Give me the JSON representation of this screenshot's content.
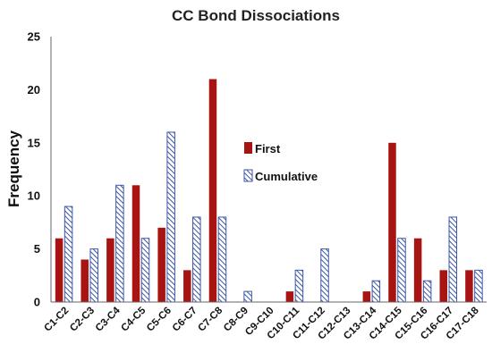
{
  "chart_data": {
    "type": "bar",
    "title": "CC Bond Dissociations",
    "xlabel": "",
    "ylabel": "Frequency",
    "ylim": [
      0,
      25
    ],
    "yticks": [
      0,
      5,
      10,
      15,
      20,
      25
    ],
    "grid": false,
    "legend_position": "right-center",
    "categories": [
      "C1-C2",
      "C2-C3",
      "C3-C4",
      "C4-C5",
      "C5-C6",
      "C6-C7",
      "C7-C8",
      "C8-C9",
      "C9-C10",
      "C10-C11",
      "C11-C12",
      "C12-C13",
      "C13-C14",
      "C14-C15",
      "C15-C16",
      "C16-C17",
      "C17-C18"
    ],
    "series": [
      {
        "name": "First",
        "style": "solid",
        "color": "#a81412",
        "values": [
          6,
          4,
          6,
          11,
          7,
          3,
          21,
          0,
          0,
          1,
          0,
          0,
          1,
          15,
          6,
          3,
          3
        ]
      },
      {
        "name": "Cumulative",
        "style": "hatched",
        "color": "#3d56a8",
        "values": [
          9,
          5,
          11,
          6,
          16,
          8,
          8,
          1,
          0,
          3,
          5,
          0,
          2,
          6,
          2,
          8,
          3
        ]
      }
    ]
  }
}
